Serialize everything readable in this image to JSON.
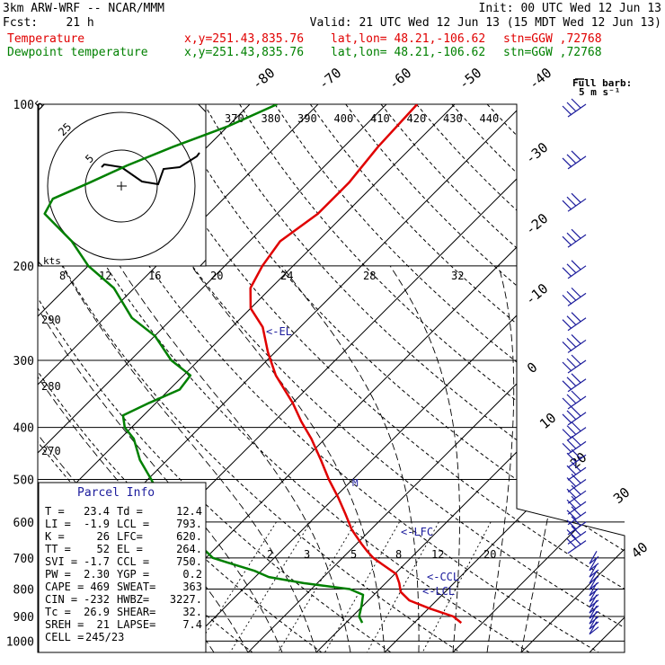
{
  "header": {
    "title": "3km ARW-WRF -- NCAR/MMM",
    "init": "Init: 00 UTC Wed 12 Jun 13",
    "fcst": "Fcst:    21 h",
    "valid": "Valid: 21 UTC Wed 12 Jun 13 (15 MDT Wed 12 Jun 13)",
    "temp_label": "Temperature",
    "dew_label": "Dewpoint temperature",
    "xy": "x,y=251.43,835.76",
    "latlon": "lat,lon= 48.21,-106.62",
    "stn": "stn=GGW ,72768"
  },
  "colors": {
    "temperature": "#e00000",
    "dewpoint": "#008000",
    "barbs": "#1c1c9c",
    "grid": "#000000"
  },
  "barb_label": [
    "Full barb:",
    "5 m s⁻¹"
  ],
  "chart_data": {
    "type": "line",
    "ylabel_values": [
      "100",
      "200",
      "300",
      "400",
      "500",
      "600",
      "700",
      "800",
      "900",
      "1000"
    ],
    "pressure_levels": [
      100,
      200,
      300,
      400,
      500,
      600,
      700,
      800,
      900,
      1000
    ],
    "isotherm_labels_top": [
      "-80",
      "-70",
      "-60",
      "-50",
      "-40"
    ],
    "isotherm_labels_right": [
      "-30",
      "-20",
      "-10",
      "0",
      "10",
      "20",
      "30",
      "40"
    ],
    "theta_labels": [
      "370",
      "380",
      "390",
      "400",
      "410",
      "420",
      "430",
      "440"
    ],
    "theta_left_labels": [
      "290",
      "280",
      "270"
    ],
    "mixing_ratio_labels": [
      "2",
      "3",
      "5",
      "8",
      "12",
      "20"
    ],
    "hodo_speed_labels": [
      "8",
      "12",
      "16",
      "20",
      "24",
      "28",
      "32"
    ],
    "hodo_ring_labels": [
      "5",
      "25",
      "5"
    ],
    "hodo_kts": "kts",
    "annotations": [
      "<-EL",
      "<-LFC",
      "<-CCL",
      "<-LCL"
    ],
    "series": [
      {
        "name": "Temperature",
        "p": [
          925,
          900,
          870,
          840,
          810,
          780,
          750,
          720,
          700,
          680,
          660,
          620,
          580,
          540,
          500,
          460,
          420,
          390,
          360,
          320,
          290,
          260,
          240,
          220,
          200,
          180,
          160,
          140,
          120,
          100
        ],
        "t": [
          26.9,
          24.8,
          20.2,
          16.0,
          13.5,
          12.0,
          10.2,
          6.8,
          4.5,
          2.6,
          0.8,
          -2.8,
          -6.0,
          -9.5,
          -13.5,
          -17.5,
          -22.0,
          -26.0,
          -30.0,
          -36.5,
          -41.0,
          -45.5,
          -50.0,
          -53.0,
          -54.5,
          -55.5,
          -54.0,
          -54.0,
          -55.0,
          -55.5
        ]
      },
      {
        "name": "Dewpoint temperature",
        "p": [
          925,
          900,
          860,
          820,
          800,
          780,
          760,
          740,
          720,
          700,
          680,
          650,
          620,
          580,
          540,
          500,
          460,
          420,
          400,
          380,
          360,
          340,
          320,
          300,
          270,
          250,
          220,
          200,
          180,
          160,
          150,
          140,
          130,
          120,
          110,
          100
        ],
        "t": [
          12.4,
          11.0,
          9.8,
          8.4,
          5.6,
          -2.0,
          -8.0,
          -11.0,
          -15.0,
          -19.0,
          -21.0,
          -25.5,
          -28.5,
          -33.0,
          -35.5,
          -39.5,
          -44.0,
          -48.0,
          -51.0,
          -53.0,
          -51.0,
          -48.5,
          -49.0,
          -54.0,
          -60.0,
          -66.0,
          -73.0,
          -80.0,
          -86.0,
          -94.0,
          -95.0,
          -92.0,
          -89.0,
          -85.0,
          -80.0,
          -76.0
        ]
      }
    ]
  },
  "parcel": {
    "title": "Parcel Info",
    "rows": [
      [
        "T  =",
        "23.4",
        "Td =",
        "12.4"
      ],
      [
        "LI =",
        "-1.9",
        "LCL =",
        "793."
      ],
      [
        "K  =",
        "26",
        "LFC=",
        "620."
      ],
      [
        "TT =",
        "52",
        "EL =",
        "264."
      ],
      [
        "SVI =",
        "-1.7",
        "CCL =",
        "750."
      ],
      [
        "PW =",
        "2.30",
        "YGP =",
        "0.2"
      ],
      [
        "CAPE =",
        "469",
        "SWEAT=",
        "363"
      ],
      [
        "CIN =",
        "-232",
        "HWBZ=",
        "3227."
      ],
      [
        "Tc =",
        "26.9",
        "SHEAR=",
        "32."
      ],
      [
        "SREH =",
        "21",
        "LAPSE=",
        "7.4"
      ],
      [
        "CELL =",
        "245/23",
        "",
        ""
      ]
    ]
  }
}
